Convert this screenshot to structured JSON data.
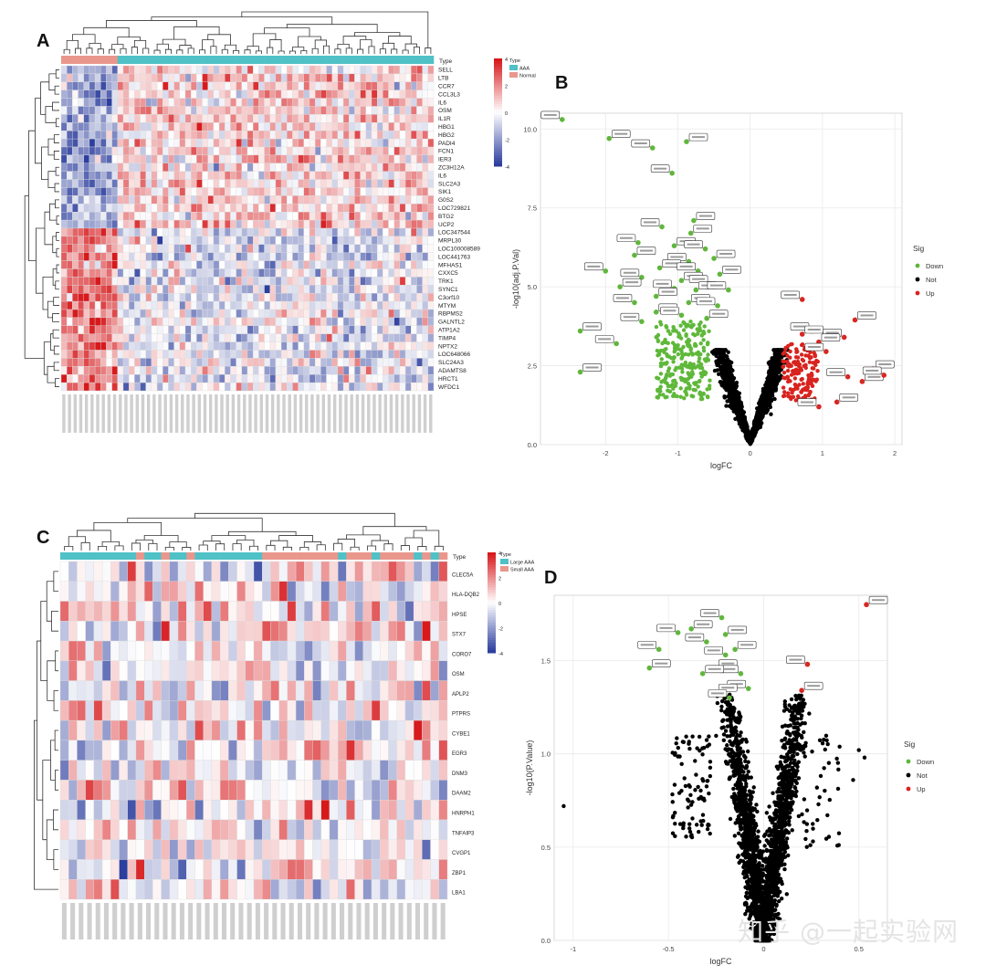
{
  "panels": {
    "A": {
      "letter": "A"
    },
    "B": {
      "letter": "B"
    },
    "C": {
      "letter": "C"
    },
    "D": {
      "letter": "D"
    }
  },
  "colors": {
    "heat_high": "#d7191c",
    "heat_mid": "#ffffff",
    "heat_low": "#2c3e9e",
    "group_teal": "#4fc1c7",
    "group_salmon": "#e9978d",
    "down": "#5fb83a",
    "not": "#000000",
    "up": "#d9231e"
  },
  "watermark": "知乎 @一起实验网",
  "chart_data": [
    {
      "id": "A",
      "type": "heatmap",
      "title": "",
      "annotation_title": "Type",
      "legend": [
        {
          "name": "AAA",
          "color": "#4fc1c7"
        },
        {
          "name": "Normal",
          "color": "#e9978d"
        }
      ],
      "colorbar_ticks": [
        4,
        2,
        0,
        -2,
        -4
      ],
      "col_groups": {
        "Normal": 10,
        "AAA": 56
      },
      "rows": [
        "SELL",
        "LTB",
        "CCR7",
        "CCL3L3",
        "IL6",
        "OSM",
        "IL1R",
        "HBG1",
        "HBG2",
        "PADI4",
        "FCN1",
        "IER3",
        "ZC3H12A",
        "IL6",
        "SLC2A3",
        "SIK1",
        "G0S2",
        "LOC729821",
        "BTG2",
        "UCP2",
        "LOC347544",
        "MRPL30",
        "LOC100008589",
        "LOC441763",
        "MFHAS1",
        "CXXC5",
        "TRK1",
        "SYNC1",
        "C3orf10",
        "MTYM",
        "RBPMS2",
        "GALNTL2",
        "ATP1A2",
        "TIMP4",
        "NPTX2",
        "LOC648066",
        "SLC24A3",
        "ADAMTS8",
        "HRCT1",
        "WFDC1"
      ]
    },
    {
      "id": "B",
      "type": "scatter",
      "title": "",
      "xlabel": "logFC",
      "ylabel": "-log10(adj.P.Val)",
      "xlim": [
        -2.9,
        2.1
      ],
      "ylim": [
        0,
        10.5
      ],
      "xticks": [
        -2,
        -1,
        0,
        1,
        2
      ],
      "yticks": [
        0.0,
        2.5,
        5.0,
        7.5,
        10.0
      ],
      "legend_title": "Sig",
      "legend": [
        {
          "name": "Down",
          "color": "#5fb83a"
        },
        {
          "name": "Not",
          "color": "#000000"
        },
        {
          "name": "Up",
          "color": "#d9231e"
        }
      ],
      "labeled_points": [
        {
          "x": -2.6,
          "y": 10.3,
          "sig": "Down"
        },
        {
          "x": -1.95,
          "y": 9.7,
          "sig": "Down"
        },
        {
          "x": -1.35,
          "y": 9.4,
          "sig": "Down"
        },
        {
          "x": -0.88,
          "y": 9.6,
          "sig": "Down"
        },
        {
          "x": -1.08,
          "y": 8.6,
          "sig": "Down"
        },
        {
          "x": -0.78,
          "y": 7.1,
          "sig": "Down"
        },
        {
          "x": -1.22,
          "y": 6.9,
          "sig": "Down"
        },
        {
          "x": -0.82,
          "y": 6.7,
          "sig": "Down"
        },
        {
          "x": -1.55,
          "y": 6.4,
          "sig": "Down"
        },
        {
          "x": -1.05,
          "y": 6.3,
          "sig": "Down"
        },
        {
          "x": -0.62,
          "y": 6.2,
          "sig": "Down"
        },
        {
          "x": -1.6,
          "y": 6.0,
          "sig": "Down"
        },
        {
          "x": -0.85,
          "y": 5.8,
          "sig": "Down"
        },
        {
          "x": -0.5,
          "y": 5.9,
          "sig": "Down"
        },
        {
          "x": -2.0,
          "y": 5.5,
          "sig": "Down"
        },
        {
          "x": -1.25,
          "y": 5.6,
          "sig": "Down"
        },
        {
          "x": -0.72,
          "y": 5.5,
          "sig": "Down"
        },
        {
          "x": -0.42,
          "y": 5.4,
          "sig": "Down"
        },
        {
          "x": -1.5,
          "y": 5.3,
          "sig": "Down"
        },
        {
          "x": -0.95,
          "y": 5.2,
          "sig": "Down"
        },
        {
          "x": -0.55,
          "y": 5.1,
          "sig": "Down"
        },
        {
          "x": -1.8,
          "y": 5.0,
          "sig": "Down"
        },
        {
          "x": -1.05,
          "y": 4.95,
          "sig": "Down"
        },
        {
          "x": -0.75,
          "y": 4.9,
          "sig": "Down"
        },
        {
          "x": -0.3,
          "y": 4.9,
          "sig": "Down"
        },
        {
          "x": -1.3,
          "y": 4.7,
          "sig": "Down"
        },
        {
          "x": -1.6,
          "y": 4.5,
          "sig": "Down"
        },
        {
          "x": -0.85,
          "y": 4.5,
          "sig": "Down"
        },
        {
          "x": -0.45,
          "y": 4.4,
          "sig": "Down"
        },
        {
          "x": -1.3,
          "y": 4.2,
          "sig": "Down"
        },
        {
          "x": -0.95,
          "y": 4.1,
          "sig": "Down"
        },
        {
          "x": -0.6,
          "y": 4.0,
          "sig": "Down"
        },
        {
          "x": -1.5,
          "y": 3.9,
          "sig": "Down"
        },
        {
          "x": -2.35,
          "y": 3.6,
          "sig": "Down"
        },
        {
          "x": -1.85,
          "y": 3.2,
          "sig": "Down"
        },
        {
          "x": -2.35,
          "y": 2.3,
          "sig": "Down"
        },
        {
          "x": 0.72,
          "y": 4.6,
          "sig": "Up"
        },
        {
          "x": 1.45,
          "y": 3.95,
          "sig": "Up"
        },
        {
          "x": 0.85,
          "y": 3.6,
          "sig": "Up"
        },
        {
          "x": 0.72,
          "y": 3.5,
          "sig": "Up"
        },
        {
          "x": 1.3,
          "y": 3.4,
          "sig": "Up"
        },
        {
          "x": 0.95,
          "y": 3.25,
          "sig": "Up"
        },
        {
          "x": 1.05,
          "y": 2.95,
          "sig": "Up"
        },
        {
          "x": 1.7,
          "y": 2.4,
          "sig": "Up"
        },
        {
          "x": 1.35,
          "y": 2.15,
          "sig": "Up"
        },
        {
          "x": 1.55,
          "y": 2.0,
          "sig": "Up"
        },
        {
          "x": 1.85,
          "y": 2.2,
          "sig": "Up"
        },
        {
          "x": 1.2,
          "y": 1.35,
          "sig": "Up"
        },
        {
          "x": 0.95,
          "y": 1.2,
          "sig": "Up"
        }
      ]
    },
    {
      "id": "C",
      "type": "heatmap",
      "title": "",
      "annotation_title": "Type",
      "legend": [
        {
          "name": "Large AAA",
          "color": "#4fc1c7"
        },
        {
          "name": "Small AAA",
          "color": "#e9978d"
        }
      ],
      "colorbar_ticks": [
        4,
        2,
        0,
        -2,
        -4
      ],
      "rows": [
        "CLEC5A",
        "HLA-DQB2",
        "HPSE",
        "STX7",
        "CORO7",
        "OSM",
        "APLP2",
        "PTPRS",
        "CYBE1",
        "EGR3",
        "DNM3",
        "DAAM2",
        "HNRPH1",
        "TNFAIP3",
        "CVGP1",
        "ZBP1",
        "LBA1"
      ]
    },
    {
      "id": "D",
      "type": "scatter",
      "title": "",
      "xlabel": "logFC",
      "ylabel": "-log10(P.Value)",
      "xlim": [
        -1.1,
        0.65
      ],
      "ylim": [
        0,
        1.85
      ],
      "xticks": [
        -1.0,
        -0.5,
        0.0,
        0.5
      ],
      "yticks": [
        0.0,
        0.5,
        1.0,
        1.5
      ],
      "legend_title": "Sig",
      "legend": [
        {
          "name": "Down",
          "color": "#5fb83a"
        },
        {
          "name": "Not",
          "color": "#000000"
        },
        {
          "name": "Up",
          "color": "#d9231e"
        }
      ],
      "labeled_points": [
        {
          "x": -0.55,
          "y": 1.56,
          "sig": "Down"
        },
        {
          "x": -0.6,
          "y": 1.46,
          "sig": "Down"
        },
        {
          "x": -0.45,
          "y": 1.65,
          "sig": "Down"
        },
        {
          "x": -0.38,
          "y": 1.67,
          "sig": "Down"
        },
        {
          "x": -0.22,
          "y": 1.73,
          "sig": "Down"
        },
        {
          "x": -0.2,
          "y": 1.64,
          "sig": "Down"
        },
        {
          "x": -0.3,
          "y": 1.6,
          "sig": "Down"
        },
        {
          "x": -0.15,
          "y": 1.56,
          "sig": "Down"
        },
        {
          "x": -0.2,
          "y": 1.53,
          "sig": "Down"
        },
        {
          "x": -0.25,
          "y": 1.46,
          "sig": "Down"
        },
        {
          "x": -0.12,
          "y": 1.43,
          "sig": "Down"
        },
        {
          "x": -0.32,
          "y": 1.43,
          "sig": "Down"
        },
        {
          "x": -0.08,
          "y": 1.35,
          "sig": "Down"
        },
        {
          "x": -0.25,
          "y": 1.33,
          "sig": "Down"
        },
        {
          "x": -0.18,
          "y": 1.3,
          "sig": "Down"
        },
        {
          "x": 0.54,
          "y": 1.8,
          "sig": "Up"
        },
        {
          "x": 0.23,
          "y": 1.48,
          "sig": "Up"
        },
        {
          "x": 0.2,
          "y": 1.34,
          "sig": "Up"
        }
      ]
    }
  ]
}
